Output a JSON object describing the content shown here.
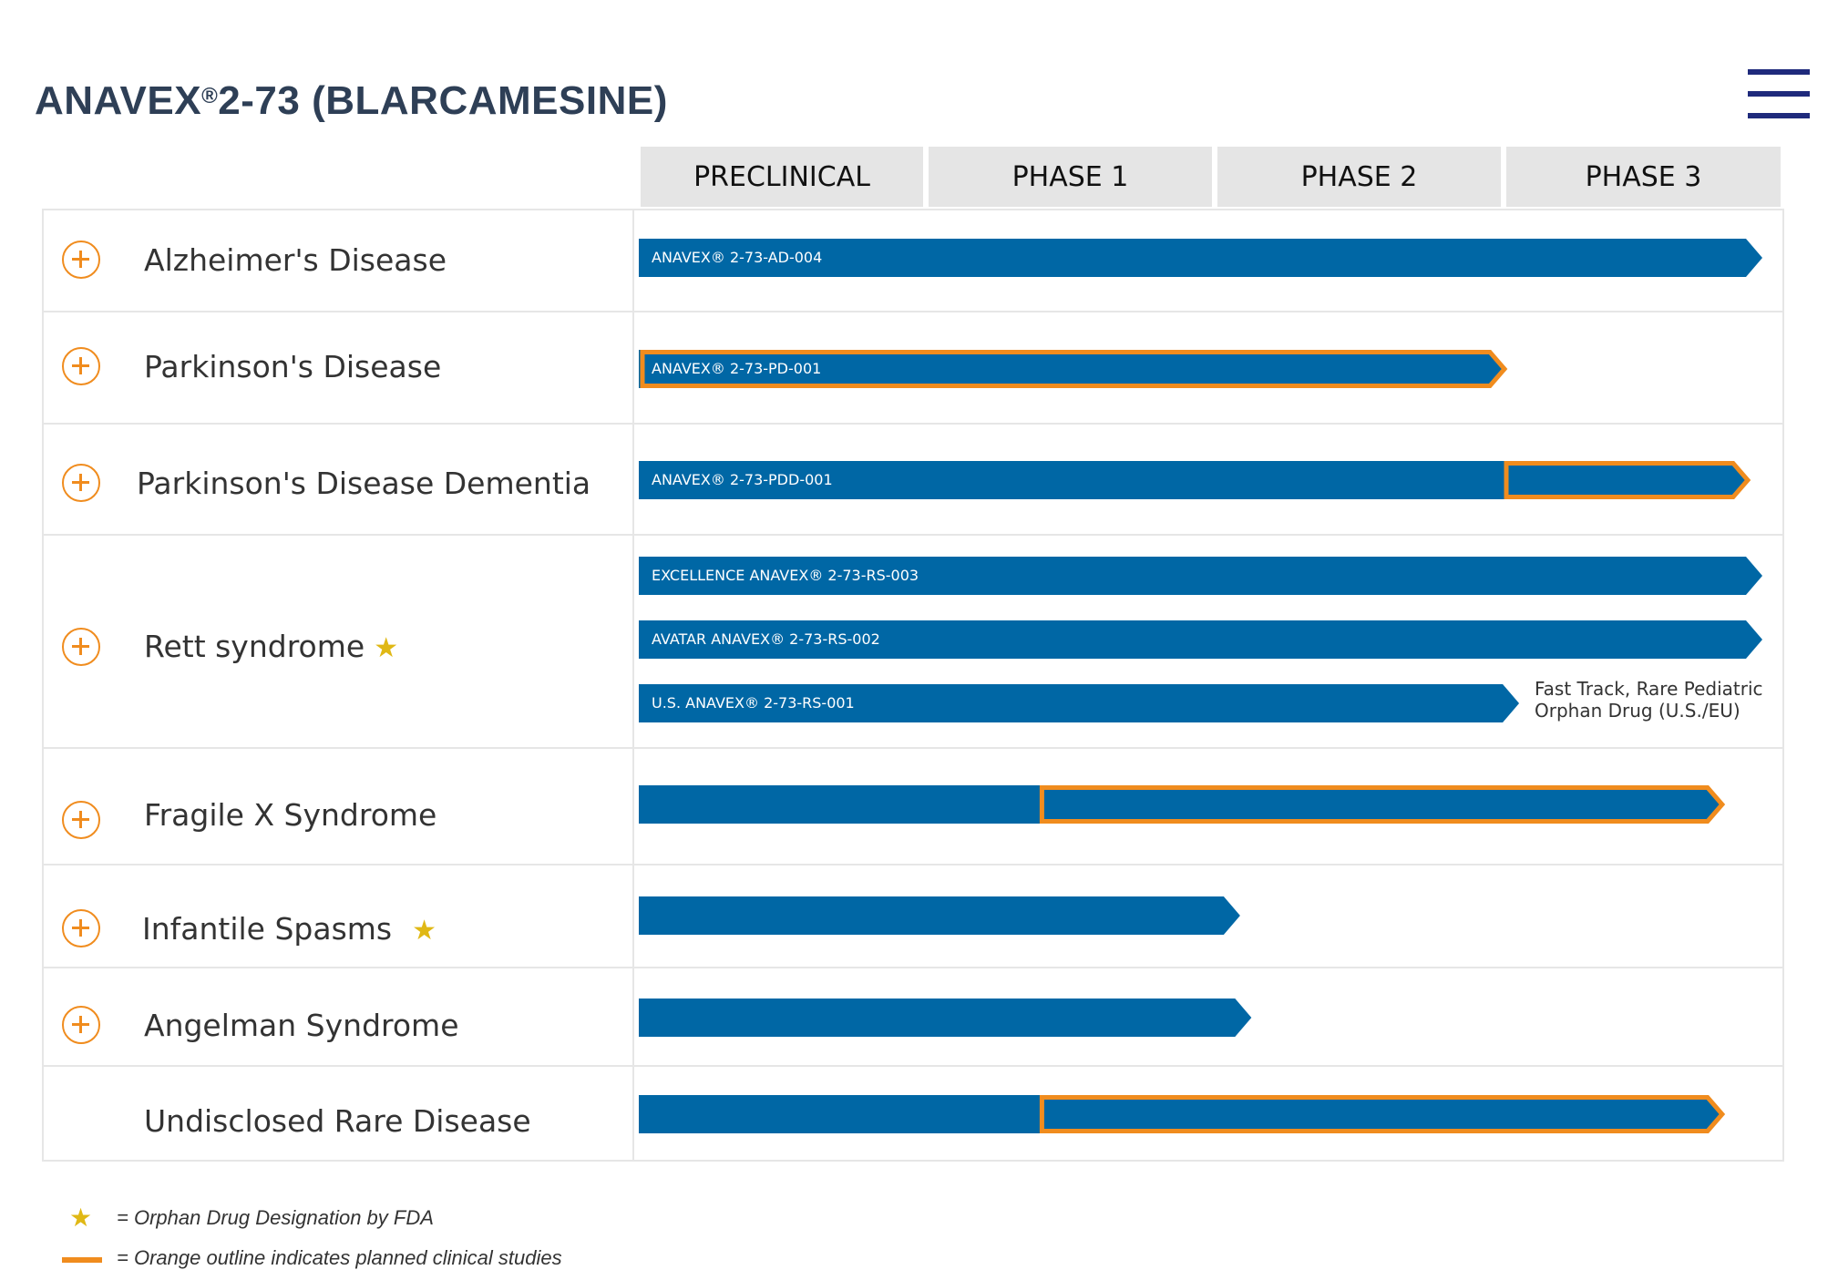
{
  "colors": {
    "title": "#2e3f56",
    "bar_blue": "#0067a5",
    "planned_outline": "#f08c1e",
    "orphan_star": "#e0b815",
    "menu": "#1f2a7c",
    "header_bg": "#e5e5e5"
  },
  "title": {
    "main_a": "ANAVEX",
    "registered": "®",
    "main_b": "2-73 (BLARCAMESINE)"
  },
  "menu": {
    "icon": "hamburger-menu-icon"
  },
  "phases": [
    "PRECLINICAL",
    "PHASE 1",
    "PHASE 2",
    "PHASE 3"
  ],
  "indications": [
    {
      "name": "Alzheimer's Disease",
      "expandable": true,
      "orphan": false
    },
    {
      "name": "Parkinson's Disease",
      "expandable": true,
      "orphan": false
    },
    {
      "name": "Parkinson's Disease Dementia",
      "expandable": true,
      "orphan": false
    },
    {
      "name": "Rett syndrome",
      "expandable": true,
      "orphan": true
    },
    {
      "name": "Fragile X Syndrome",
      "expandable": true,
      "orphan": false
    },
    {
      "name": "Infantile Spasms",
      "expandable": true,
      "orphan": true
    },
    {
      "name": "Angelman Syndrome",
      "expandable": true,
      "orphan": false
    },
    {
      "name": "Undisclosed Rare Disease",
      "expandable": false,
      "orphan": false
    }
  ],
  "bars": [
    {
      "indication": "Alzheimer's Disease",
      "label": "ANAVEX® 2-73-AD-004",
      "progress_phase": 4.0,
      "planned_from_phase": null
    },
    {
      "indication": "Parkinson's Disease",
      "label": "ANAVEX® 2-73-PD-001",
      "progress_phase": 3.0,
      "planned_from_phase": 0.0
    },
    {
      "indication": "Parkinson's Disease Dementia",
      "label": "ANAVEX® 2-73-PDD-001",
      "progress_phase": 3.95,
      "planned_from_phase": 3.0
    },
    {
      "indication": "Rett syndrome",
      "label": "EXCELLENCE ANAVEX® 2-73-RS-003",
      "progress_phase": 4.0,
      "planned_from_phase": null
    },
    {
      "indication": "Rett syndrome",
      "label": "AVATAR ANAVEX® 2-73-RS-002",
      "progress_phase": 4.0,
      "planned_from_phase": null
    },
    {
      "indication": "Rett syndrome",
      "label": "U.S. ANAVEX® 2-73-RS-001",
      "progress_phase": 3.05,
      "planned_from_phase": null
    },
    {
      "indication": "Fragile X Syndrome",
      "label": "",
      "progress_phase": 3.85,
      "planned_from_phase": 1.4
    },
    {
      "indication": "Infantile Spasms",
      "label": "",
      "progress_phase": 2.08,
      "planned_from_phase": null
    },
    {
      "indication": "Angelman Syndrome",
      "label": "",
      "progress_phase": 2.12,
      "planned_from_phase": null
    },
    {
      "indication": "Undisclosed Rare Disease",
      "label": "",
      "progress_phase": 3.85,
      "planned_from_phase": 1.4
    }
  ],
  "rett_note": {
    "line1": "Fast Track, Rare Pediatric",
    "line2": "Orphan Drug (U.S./EU)"
  },
  "legend": {
    "orphan_icon": "star-icon",
    "orphan_text": "= Orphan Drug Designation by FDA",
    "planned_text": "= Orange outline indicates planned clinical studies"
  }
}
